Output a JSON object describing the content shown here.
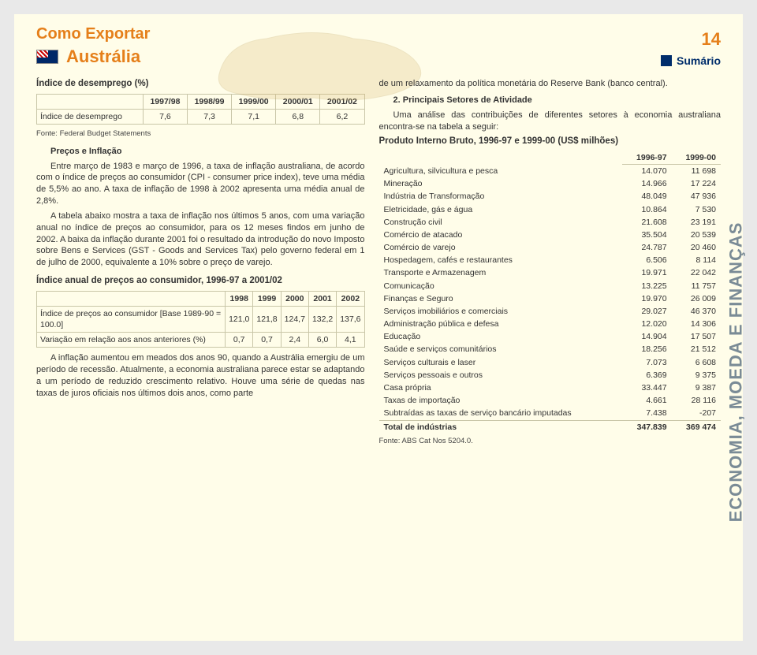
{
  "header": {
    "title1": "Como Exportar",
    "title2": "Austrália",
    "page": "14",
    "summary": "Sumário"
  },
  "colors": {
    "page_bg": "#fffde9",
    "outer_bg": "#e9e9e9",
    "accent_orange": "#e57f1a",
    "accent_blue": "#002d6b",
    "sidebar_text": "#7a8b96",
    "table_border": "#c9c6a8",
    "body_text": "#333333"
  },
  "sidebar": {
    "label": "ECONOMIA, MOEDA E FINANÇAS"
  },
  "left": {
    "unemp_title": "Índice de desemprego (%)",
    "unemp_table": {
      "years": [
        "1997/98",
        "1998/99",
        "1999/00",
        "2000/01",
        "2001/02"
      ],
      "row_label": "Índice de desemprego",
      "values": [
        "7,6",
        "7,3",
        "7,1",
        "6,8",
        "6,2"
      ]
    },
    "unemp_source": "Fonte: Federal Budget Statements",
    "prices_heading": "Preços e Inflação",
    "para1": "Entre março de 1983 e março de 1996, a taxa de inflação australiana, de acordo com o índice de preços ao consumidor (CPI - consumer price index), teve uma média de 5,5% ao ano. A taxa de inflação de 1998 à 2002 apresenta uma média anual de 2,8%.",
    "para2": "A tabela abaixo mostra a taxa de inflação nos últimos 5 anos, com uma variação anual no índice de preços ao consumidor, para os 12 meses findos em junho de 2002. A baixa da inflação durante 2001 foi o resultado da introdução do novo Imposto sobre Bens e Services (GST - Goods and Services Tax) pelo governo federal em 1 de julho de 2000, equivalente a 10% sobre o preço de varejo.",
    "cpi_title": "Índice anual de preços ao consumidor, 1996-97 a 2001/02",
    "cpi_table": {
      "years": [
        "1998",
        "1999",
        "2000",
        "2001",
        "2002"
      ],
      "rows": [
        {
          "label": "Índice de preços ao consumidor [Base 1989-90 = 100.0]",
          "values": [
            "121,0",
            "121,8",
            "124,7",
            "132,2",
            "137,6"
          ]
        },
        {
          "label": "Variação em relação aos anos anteriores (%)",
          "values": [
            "0,7",
            "0,7",
            "2,4",
            "6,0",
            "4,1"
          ]
        }
      ]
    },
    "para3": "A inflação aumentou em meados dos anos 90, quando a Austrália emergiu de um período de recessão. Atualmente, a economia australiana parece estar se adaptando a um período de reduzido crescimento relativo. Houve uma série de quedas nas taxas de juros oficiais nos últimos dois anos, como parte"
  },
  "right": {
    "para1": "de um relaxamento da política monetária do Reserve Bank (banco central).",
    "sectors_heading": "2. Principais Setores de Atividade",
    "para2": "Uma análise das contribuições de diferentes setores à economia australiana encontra-se na tabela a seguir:",
    "gdp_title": "Produto Interno Bruto, 1996-97 e 1999-00 (US$ milhões)",
    "gdp_table": {
      "years": [
        "1996-97",
        "1999-00"
      ],
      "rows": [
        {
          "label": "Agricultura, silvicultura e pesca",
          "v1": "14.070",
          "v2": "11 698"
        },
        {
          "label": "Mineração",
          "v1": "14.966",
          "v2": "17 224"
        },
        {
          "label": "Indústria de Transformação",
          "v1": "48.049",
          "v2": "47 936"
        },
        {
          "label": "Eletricidade, gás e água",
          "v1": "10.864",
          "v2": "7 530"
        },
        {
          "label": "Construção civil",
          "v1": "21.608",
          "v2": "23 191"
        },
        {
          "label": "Comércio de atacado",
          "v1": "35.504",
          "v2": "20 539"
        },
        {
          "label": "Comércio de varejo",
          "v1": "24.787",
          "v2": "20 460"
        },
        {
          "label": "Hospedagem, cafés e restaurantes",
          "v1": "6.506",
          "v2": "8 114"
        },
        {
          "label": "Transporte e Armazenagem",
          "v1": "19.971",
          "v2": "22 042"
        },
        {
          "label": "Comunicação",
          "v1": "13.225",
          "v2": "11 757"
        },
        {
          "label": "Finanças e Seguro",
          "v1": "19.970",
          "v2": "26 009"
        },
        {
          "label": "Serviços imobiliários e comerciais",
          "v1": "29.027",
          "v2": "46 370"
        },
        {
          "label": "Administração pública e defesa",
          "v1": "12.020",
          "v2": "14 306"
        },
        {
          "label": "Educação",
          "v1": "14.904",
          "v2": "17 507"
        },
        {
          "label": "Saúde e serviços comunitários",
          "v1": "18.256",
          "v2": "21 512"
        },
        {
          "label": "Serviços culturais e laser",
          "v1": "7.073",
          "v2": "6 608"
        },
        {
          "label": "Serviços pessoais e outros",
          "v1": "6.369",
          "v2": "9 375"
        },
        {
          "label": "Casa própria",
          "v1": "33.447",
          "v2": "9 387"
        },
        {
          "label": "Taxas de importação",
          "v1": "4.661",
          "v2": "28 116"
        },
        {
          "label": "Subtraídas as taxas de serviço bancário imputadas",
          "v1": "7.438",
          "v2": "-207"
        }
      ],
      "total": {
        "label": "Total de indústrias",
        "v1": "347.839",
        "v2": "369 474"
      }
    },
    "gdp_source": "Fonte: ABS Cat Nos 5204.0."
  }
}
